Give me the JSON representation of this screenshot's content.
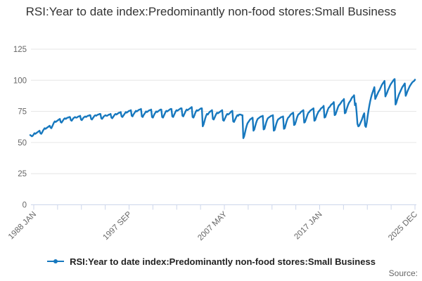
{
  "header": {
    "title": "RSI:Year to date index:Predominantly non-food stores:Small Business"
  },
  "legend": {
    "label": "RSI:Year to date index:Predominantly non-food stores:Small Business"
  },
  "footer": {
    "source_label": "Source:"
  },
  "colors": {
    "series_line": "#1778be",
    "grid_line": "#e6e6e6",
    "axis_line": "#ccd6eb",
    "axis_label": "#666666",
    "title_text": "#333333",
    "legend_text": "#222222"
  },
  "chart_data": {
    "type": "line",
    "title": "RSI:Year to date index:Predominantly non-food stores:Small Business",
    "xlabel": "",
    "ylabel": "",
    "ylim": [
      0,
      125
    ],
    "y_ticks": [
      0,
      25,
      50,
      75,
      100,
      125
    ],
    "grid": "horizontal",
    "legend_position": "bottom",
    "x_start": "1988 JAN",
    "x_end": "2025 DEC",
    "frequency": "monthly",
    "x_tick_count": 17,
    "x_tick_labels": [
      {
        "label": "1988 JAN",
        "tick": 0
      },
      {
        "label": "1997 SEP",
        "tick": 4
      },
      {
        "label": "2007 MAY",
        "tick": 8
      },
      {
        "label": "2017 JAN",
        "tick": 12
      },
      {
        "label": "2025 DEC",
        "tick": 16
      }
    ],
    "series": [
      {
        "name": "RSI:Year to date index:Predominantly non-food stores:Small Business",
        "color": "#1778be",
        "monthly_values": [
          56,
          55.5,
          55,
          55.5,
          56.5,
          57.5,
          57,
          57.5,
          58,
          58.5,
          59,
          59.5,
          57.5,
          57,
          58,
          59.5,
          60.5,
          61.5,
          61,
          61.5,
          62,
          62.5,
          63,
          63.5,
          62,
          61.5,
          63,
          64.5,
          66,
          67,
          66.5,
          67,
          67.5,
          68,
          68.5,
          69,
          66.5,
          66,
          67,
          68,
          69,
          69.5,
          69,
          69.5,
          70,
          70,
          70.5,
          70.5,
          68,
          67.5,
          68.5,
          69.5,
          70,
          70.5,
          70,
          70,
          70.5,
          71,
          71,
          71.5,
          68.5,
          68,
          69,
          70,
          70.5,
          71,
          70.5,
          71,
          71.5,
          71.5,
          72,
          72,
          69,
          68.5,
          69.5,
          70.5,
          71.5,
          72,
          71.5,
          72,
          72.5,
          72.5,
          73,
          73,
          69.5,
          69,
          70,
          71,
          71.5,
          72,
          71.5,
          71.5,
          72,
          72.5,
          72.5,
          73,
          70,
          69.5,
          70.5,
          71.5,
          72.5,
          73,
          72.5,
          73,
          73.5,
          74,
          74,
          74.5,
          71,
          70.5,
          71.5,
          72.5,
          73.5,
          74.5,
          74,
          74.5,
          75,
          75.5,
          75.5,
          76,
          71.5,
          71,
          72.5,
          73.5,
          74.5,
          75.5,
          75,
          75.5,
          76,
          76.5,
          76.5,
          77,
          71,
          70.5,
          72,
          73,
          74,
          75,
          74.5,
          75,
          75.5,
          76,
          76,
          76.5,
          70.5,
          70,
          71.5,
          73,
          74,
          75,
          74.5,
          75,
          75.5,
          76,
          76.5,
          76.5,
          70.5,
          70,
          71.5,
          73,
          74.5,
          75.5,
          75,
          75.5,
          76,
          76.5,
          77,
          77,
          71,
          70.5,
          72,
          73.5,
          75,
          76,
          75.5,
          76,
          76.5,
          77,
          77.5,
          77.5,
          71.5,
          71,
          72.5,
          74,
          75.5,
          76.5,
          76,
          76.5,
          77,
          77.5,
          78,
          78.5,
          70.5,
          70,
          71.5,
          73.5,
          75,
          76,
          75.5,
          76,
          76.5,
          77,
          77.5,
          77.5,
          63,
          64.5,
          67,
          69.5,
          71.5,
          73,
          72.5,
          73.5,
          74.5,
          75,
          75.5,
          76,
          69,
          68.5,
          70,
          71.5,
          73,
          74,
          73.5,
          74,
          74.5,
          75,
          75.5,
          76,
          68,
          67.5,
          69,
          70.5,
          72,
          73,
          72.5,
          73,
          73.5,
          74.5,
          75,
          75.5,
          67,
          66.5,
          68,
          69.5,
          71,
          72,
          71.5,
          72.5,
          72.5,
          72.5,
          72,
          72,
          53.5,
          55,
          58,
          61,
          63.5,
          65.5,
          66.5,
          67.5,
          68.5,
          69,
          69.5,
          70,
          59.5,
          60.5,
          63,
          65.5,
          67.5,
          69,
          69.5,
          70,
          70.5,
          71,
          71,
          71.5,
          60.5,
          61,
          63.5,
          66,
          68,
          69.5,
          70,
          70.5,
          71,
          71.5,
          71.5,
          72,
          59.5,
          60,
          62.5,
          65,
          67,
          68.5,
          69,
          69.5,
          70,
          70.5,
          70.5,
          71,
          61,
          61.5,
          64,
          66.5,
          68.5,
          70,
          70.5,
          71.5,
          72.5,
          73,
          73.5,
          74,
          64,
          64.5,
          66.5,
          69,
          71,
          72.5,
          73,
          73.5,
          74.5,
          75,
          75.5,
          76,
          66,
          66.5,
          68.5,
          70.5,
          72.5,
          74,
          74.5,
          75.5,
          76,
          76.5,
          77,
          77.5,
          67.5,
          68,
          70,
          72,
          73.5,
          75,
          75.5,
          76.5,
          77.5,
          78,
          78.5,
          79.5,
          70,
          70.5,
          72.5,
          74.5,
          76.5,
          78,
          78.5,
          79.5,
          80.5,
          81,
          81.5,
          82.5,
          72,
          72.5,
          74.5,
          76.5,
          78.5,
          80,
          80.5,
          81.5,
          82.5,
          83.5,
          84,
          85,
          73.5,
          74,
          76.5,
          78.5,
          80.5,
          82,
          83,
          84,
          85.5,
          86.5,
          87,
          88,
          80,
          81.5,
          74,
          65,
          63,
          63.5,
          65,
          66.5,
          68,
          70,
          72,
          73.5,
          63.5,
          62.5,
          66,
          71,
          75.5,
          79.5,
          83,
          86,
          88.5,
          90.5,
          92.5,
          94.5,
          85,
          86.5,
          88,
          89.5,
          91,
          92,
          93.5,
          95,
          96.5,
          97.5,
          98.5,
          99.5,
          87,
          88.5,
          90,
          92,
          93.5,
          95,
          96.5,
          97.5,
          98.5,
          99.5,
          100.5,
          101,
          80.5,
          82,
          84.5,
          86.5,
          88.5,
          90,
          91.5,
          93,
          94.5,
          95.5,
          96.5,
          97.5,
          87.5,
          89,
          91,
          92.5,
          94,
          95.5,
          96.5,
          97.5,
          98.5,
          99,
          99.5,
          100.5
        ]
      }
    ]
  }
}
